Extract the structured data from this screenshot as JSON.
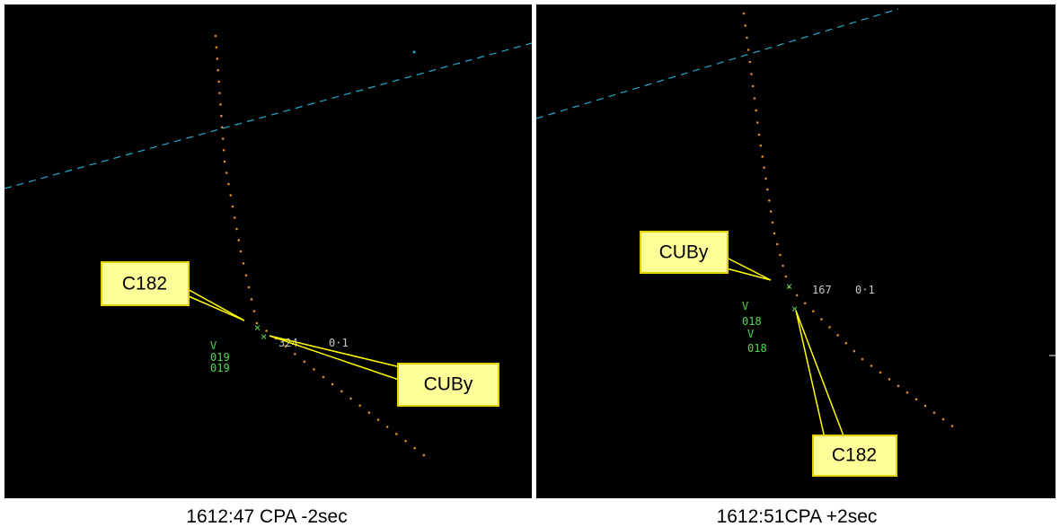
{
  "panels": [
    {
      "caption": "1612:47 CPA -2sec",
      "callouts": [
        "C182",
        "CUBy"
      ],
      "radar_text": [
        "324",
        "0·1",
        "V",
        "019",
        "019"
      ]
    },
    {
      "caption": "1612:51CPA +2sec",
      "callouts": [
        "CUBy",
        "C182"
      ],
      "radar_text": [
        "167",
        "0·1",
        "V",
        "018",
        "V",
        "018"
      ]
    }
  ]
}
